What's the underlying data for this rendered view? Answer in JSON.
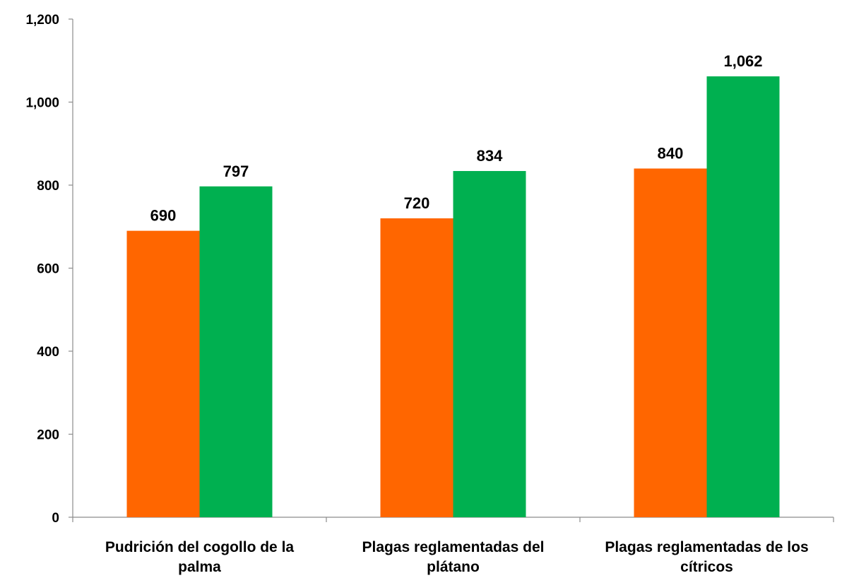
{
  "chart_data": {
    "type": "bar",
    "categories": [
      [
        "Pudrición del cogollo de la",
        "palma"
      ],
      [
        "Plagas reglamentadas del",
        "plátano"
      ],
      [
        "Plagas reglamentadas de los",
        "cítricos"
      ]
    ],
    "series": [
      {
        "color": "#ff6600",
        "values": [
          690,
          720,
          840
        ],
        "labels": [
          "690",
          "720",
          "840"
        ]
      },
      {
        "color": "#00b050",
        "values": [
          797,
          834,
          1062
        ],
        "labels": [
          "797",
          "834",
          "1,062"
        ]
      }
    ],
    "y_ticks": [
      0,
      200,
      400,
      600,
      800,
      1000,
      1200
    ],
    "y_tick_labels": [
      "0",
      "200",
      "400",
      "600",
      "800",
      "1,000",
      "1,200"
    ],
    "ylim": [
      0,
      1200
    ],
    "grid": false,
    "legend": "none"
  }
}
